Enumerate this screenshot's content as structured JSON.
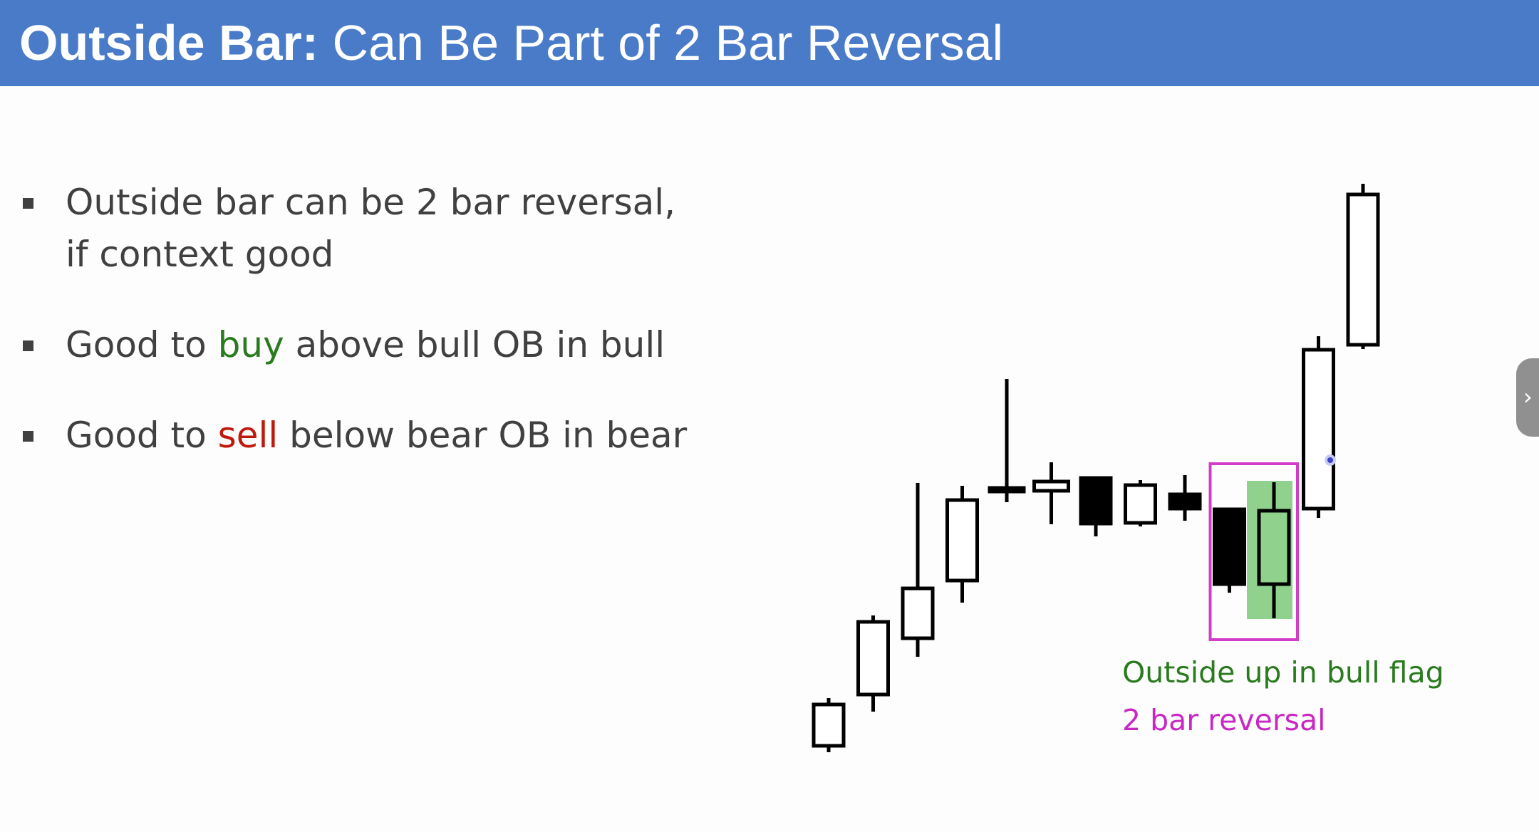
{
  "header": {
    "title_bold": "Outside Bar:",
    "title_rest": "Can Be Part of 2 Bar Reversal",
    "background": "#4a7bc8"
  },
  "bullets": [
    {
      "before": "Outside bar can be 2 bar reversal,",
      "line2": "if context good"
    },
    {
      "before": "Good to ",
      "highlight": "buy",
      "highlight_color": "#2a7a1e",
      "after": " above bull OB in bull"
    },
    {
      "before": "Good to ",
      "highlight": "sell",
      "highlight_color": "#c0180c",
      "after": " below bear OB in bear"
    }
  ],
  "chart_data": {
    "type": "candlestick",
    "title": "",
    "xlabel": "",
    "ylabel": "",
    "axes_shown": false,
    "grid": false,
    "bars": [
      {
        "o": 9,
        "c": 67,
        "h": 76,
        "l": 0,
        "color": "bull"
      },
      {
        "o": 81,
        "c": 183,
        "h": 192,
        "l": 57,
        "color": "bull"
      },
      {
        "o": 160,
        "c": 230,
        "h": 378,
        "l": 134,
        "color": "bull"
      },
      {
        "o": 241,
        "c": 354,
        "h": 374,
        "l": 210,
        "color": "bull"
      },
      {
        "o": 366,
        "c": 371,
        "h": 524,
        "l": 351,
        "color": "bull"
      },
      {
        "o": 367,
        "c": 380,
        "h": 407,
        "l": 320,
        "color": "bull"
      },
      {
        "o": 385,
        "c": 321,
        "h": 385,
        "l": 303,
        "color": "bear"
      },
      {
        "o": 322,
        "c": 375,
        "h": 382,
        "l": 317,
        "color": "bull"
      },
      {
        "o": 362,
        "c": 342,
        "h": 389,
        "l": 325,
        "color": "bear"
      },
      {
        "o": 341,
        "c": 236,
        "h": 341,
        "l": 224,
        "color": "bear"
      },
      {
        "o": 236,
        "c": 339,
        "h": 379,
        "l": 188,
        "color": "bull",
        "highlight": true
      },
      {
        "o": 342,
        "c": 565,
        "h": 584,
        "l": 329,
        "color": "bull"
      },
      {
        "o": 572,
        "c": 783,
        "h": 798,
        "l": 566,
        "color": "bull"
      }
    ],
    "highlight_fill": "#8fd18d",
    "box_color": "#d23cc8",
    "box_bars": [
      9,
      10
    ],
    "annotations": [
      {
        "text": "Outside up in bull flag",
        "color": "#2a7a1e"
      },
      {
        "text": "2 bar reversal",
        "color": "#c827c4"
      }
    ]
  }
}
